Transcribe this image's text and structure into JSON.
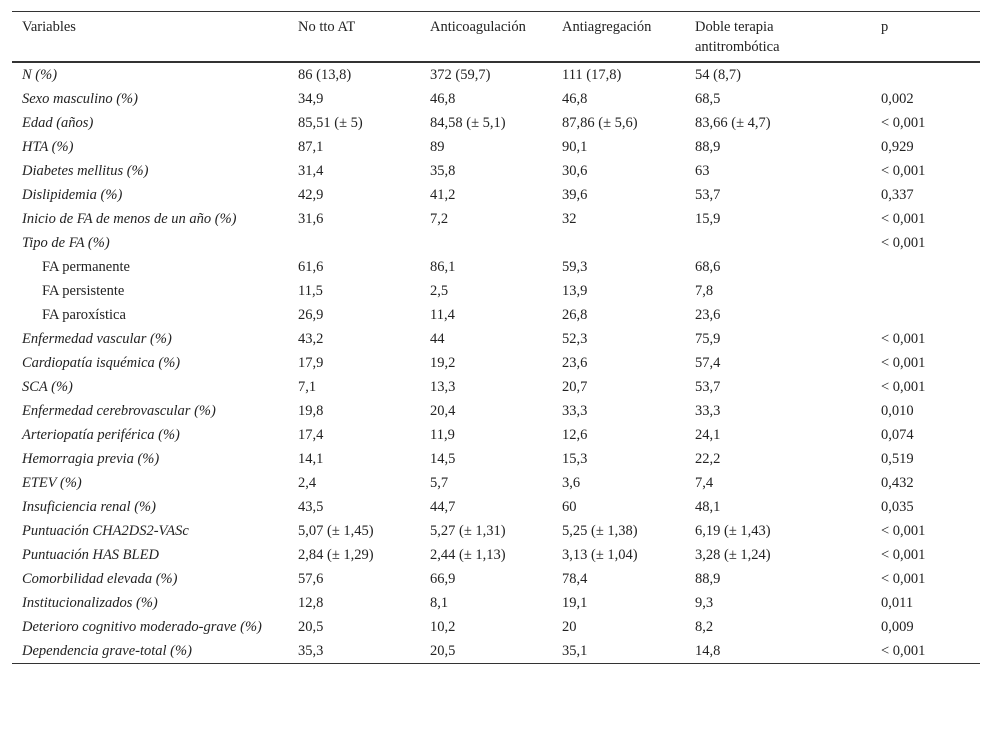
{
  "table": {
    "header": [
      "Variables",
      "No tto AT",
      "Anticoagulación",
      "Antiagregación",
      "Doble terapia antitrombótica",
      "p"
    ],
    "rows": [
      {
        "cells": [
          "N (%)",
          "86 (13,8)",
          "372 (59,7)",
          "111 (17,8)",
          "54 (8,7)",
          null
        ]
      },
      {
        "cells": [
          "Sexo masculino (%)",
          "34,9",
          "46,8",
          "46,8",
          "68,5",
          "0,002"
        ]
      },
      {
        "cells": [
          "Edad (años)",
          "85,51 (± 5)",
          "84,58 (± 5,1)",
          "87,86 (± 5,6)",
          "83,66 (± 4,7)",
          "< 0,001"
        ]
      },
      {
        "cells": [
          "HTA (%)",
          "87,1",
          "89",
          "90,1",
          "88,9",
          "0,929"
        ]
      },
      {
        "cells": [
          "Diabetes mellitus (%)",
          "31,4",
          "35,8",
          "30,6",
          "63",
          "< 0,001"
        ]
      },
      {
        "cells": [
          "Dislipidemia (%)",
          "42,9",
          "41,2",
          "39,6",
          "53,7",
          "0,337"
        ]
      },
      {
        "cells": [
          "Inicio de FA de menos de un año (%)",
          "31,6",
          "7,2",
          "32",
          "15,9",
          "< 0,001"
        ]
      },
      {
        "cells": [
          "Tipo de FA (%)",
          null,
          null,
          null,
          null,
          "< 0,001"
        ],
        "subrows": [
          [
            "FA permanente",
            "61,6",
            "86,1",
            "59,3",
            "68,6",
            null
          ],
          [
            "FA persistente",
            "11,5",
            "2,5",
            "13,9",
            "7,8",
            null
          ],
          [
            "FA paroxística",
            "26,9",
            "11,4",
            "26,8",
            "23,6",
            null
          ]
        ]
      },
      {
        "cells": [
          "Enfermedad vascular (%)",
          "43,2",
          "44",
          "52,3",
          "75,9",
          "< 0,001"
        ]
      },
      {
        "cells": [
          "Cardiopatía isquémica (%)",
          "17,9",
          "19,2",
          "23,6",
          "57,4",
          "< 0,001"
        ]
      },
      {
        "cells": [
          "SCA (%)",
          "7,1",
          "13,3",
          "20,7",
          "53,7",
          "< 0,001"
        ]
      },
      {
        "cells": [
          "Enfermedad cerebrovascular (%)",
          "19,8",
          "20,4",
          "33,3",
          "33,3",
          "0,010"
        ]
      },
      {
        "cells": [
          "Arteriopatía periférica (%)",
          "17,4",
          "11,9",
          "12,6",
          "24,1",
          "0,074"
        ]
      },
      {
        "cells": [
          "Hemorragia previa (%)",
          "14,1",
          "14,5",
          "15,3",
          "22,2",
          "0,519"
        ]
      },
      {
        "cells": [
          "ETEV (%)",
          "2,4",
          "5,7",
          "3,6",
          "7,4",
          "0,432"
        ]
      },
      {
        "cells": [
          "Insuficiencia renal (%)",
          "43,5",
          "44,7",
          "60",
          "48,1",
          "0,035"
        ]
      },
      {
        "cells": [
          "Puntuación CHA2DS2-VASc",
          "5,07 (± 1,45)",
          "5,27 (± 1,31)",
          "5,25 (± 1,38)",
          "6,19 (± 1,43)",
          "< 0,001"
        ]
      },
      {
        "cells": [
          "Puntuación HAS BLED",
          "2,84 (± 1,29)",
          "2,44 (± 1,13)",
          "3,13 (± 1,04)",
          "3,28 (± 1,24)",
          "< 0,001"
        ]
      },
      {
        "cells": [
          "Comorbilidad elevada (%)",
          "57,6",
          "66,9",
          "78,4",
          "88,9",
          "< 0,001"
        ]
      },
      {
        "cells": [
          "Institucionalizados (%)",
          "12,8",
          "8,1",
          "19,1",
          "9,3",
          "0,011"
        ]
      },
      {
        "cells": [
          "Deterioro cognitivo moderado-grave (%)",
          "20,5",
          "10,2",
          "20",
          "8,2",
          "0,009"
        ]
      },
      {
        "cells": [
          "Dependencia grave-total (%)",
          "35,3",
          "20,5",
          "35,1",
          "14,8",
          "< 0,001"
        ]
      }
    ]
  }
}
